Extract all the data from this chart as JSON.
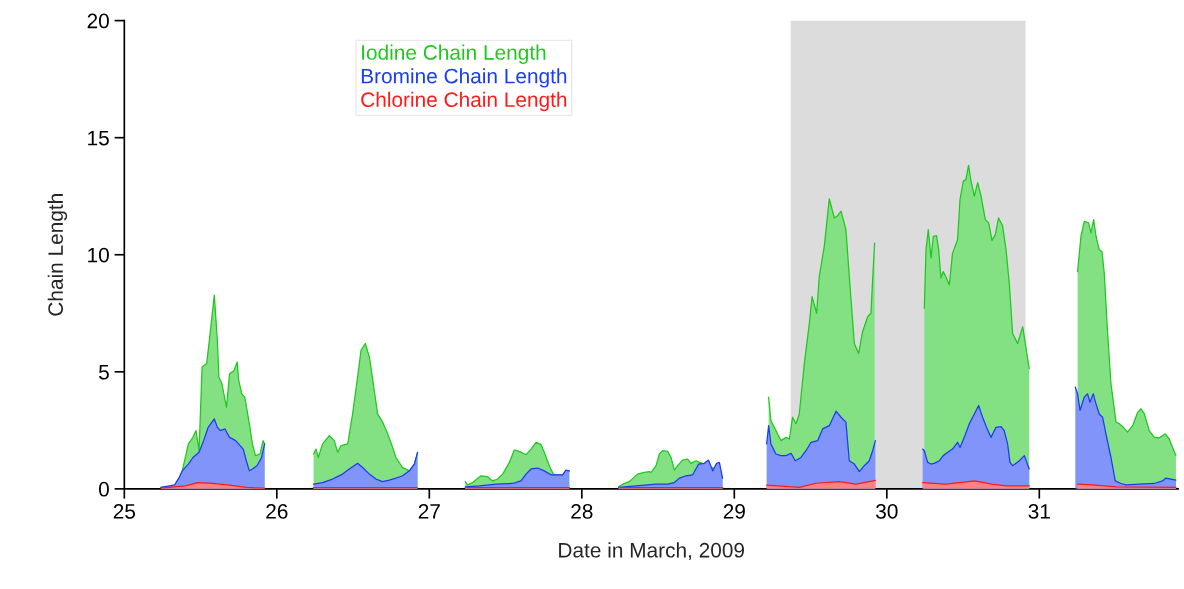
{
  "chart_data": {
    "type": "area",
    "xlabel": "Date in March, 2009",
    "ylabel": "Chain Length",
    "xlim": [
      25,
      31.91
    ],
    "ylim": [
      0,
      20
    ],
    "xticks": [
      25,
      26,
      27,
      28,
      29,
      30,
      31
    ],
    "yticks": [
      0,
      5,
      10,
      15,
      20
    ],
    "grid": false,
    "legend": "top left",
    "bands": [
      {
        "axis": "x",
        "from": 29.37,
        "to": 30.91,
        "color": "#dcdcdc"
      }
    ],
    "series": [
      {
        "name": "Iodine Chain Length",
        "color": "#1ec81e",
        "x": [
          25.24,
          25.34,
          25.38,
          25.42,
          25.45,
          25.47,
          25.49,
          25.51,
          25.54,
          25.56,
          25.59,
          25.61,
          25.62,
          25.64,
          25.67,
          25.69,
          25.72,
          25.74,
          25.75,
          25.77,
          25.79,
          25.82,
          25.84,
          25.86,
          25.89,
          25.91,
          25.92,
          26.0,
          26.241,
          26.257,
          26.272,
          26.3,
          26.344,
          26.377,
          26.399,
          26.421,
          26.465,
          26.497,
          26.53,
          26.552,
          26.58,
          26.607,
          26.639,
          26.661,
          26.694,
          26.727,
          26.76,
          26.781,
          26.825,
          26.869,
          26.902,
          26.923,
          27.0,
          27.236,
          27.251,
          27.284,
          27.339,
          27.382,
          27.415,
          27.448,
          27.481,
          27.525,
          27.557,
          27.59,
          27.634,
          27.667,
          27.7,
          27.732,
          27.754,
          27.787,
          27.813,
          27.841,
          27.874,
          27.896,
          27.918,
          28.0,
          28.241,
          28.268,
          28.311,
          28.366,
          28.41,
          28.443,
          28.454,
          28.487,
          28.508,
          28.53,
          28.563,
          28.585,
          28.607,
          28.628,
          28.661,
          28.694,
          28.716,
          28.749,
          28.77,
          28.792,
          28.858,
          28.923,
          29.0,
          29.225,
          29.24,
          29.273,
          29.306,
          29.339,
          29.361,
          29.382,
          29.405,
          29.426,
          29.459,
          29.492,
          29.51,
          29.54,
          29.557,
          29.59,
          29.623,
          29.656,
          29.677,
          29.7,
          29.732,
          29.754,
          29.787,
          29.815,
          29.841,
          29.874,
          29.896,
          29.907,
          29.92,
          30.0,
          30.246,
          30.257,
          30.272,
          30.29,
          30.305,
          30.326,
          30.34,
          30.355,
          30.37,
          30.387,
          30.41,
          30.431,
          30.464,
          30.48,
          30.502,
          30.519,
          30.536,
          30.552,
          30.574,
          30.596,
          30.618,
          30.646,
          30.668,
          30.69,
          30.711,
          30.733,
          30.759,
          30.782,
          30.803,
          30.825,
          30.858,
          30.891,
          30.934,
          31.0,
          31.251,
          31.273,
          31.295,
          31.323,
          31.339,
          31.356,
          31.372,
          31.393,
          31.411,
          31.426,
          31.448,
          31.47,
          31.503,
          31.525,
          31.551,
          31.579,
          31.612,
          31.645,
          31.667,
          31.689,
          31.721,
          31.754,
          31.787,
          31.826,
          31.852,
          31.874,
          31.896
        ],
        "values": [
          0.06,
          0.13,
          0.77,
          1.92,
          2.2,
          2.49,
          1.63,
          5.21,
          5.35,
          6.49,
          8.28,
          6.35,
          4.78,
          4.49,
          3.49,
          4.92,
          5.06,
          5.42,
          4.64,
          4.06,
          3.92,
          2.78,
          1.92,
          1.42,
          1.49,
          2.06,
          1.92,
          null,
          1.49,
          1.7,
          1.34,
          1.92,
          2.27,
          2.06,
          1.56,
          1.85,
          1.92,
          3.2,
          4.78,
          5.92,
          6.21,
          5.64,
          4.21,
          3.2,
          2.85,
          2.35,
          1.77,
          1.34,
          0.91,
          0.77,
          1.06,
          1.56,
          null,
          0.31,
          0.17,
          0.27,
          0.56,
          0.52,
          0.34,
          0.42,
          0.63,
          1.13,
          1.66,
          1.6,
          1.46,
          1.7,
          1.99,
          1.89,
          1.56,
          0.99,
          0.63,
          0.6,
          0.6,
          0.77,
          0.77,
          null,
          0.09,
          0.2,
          0.31,
          0.63,
          0.7,
          0.74,
          0.7,
          0.99,
          1.49,
          1.63,
          1.6,
          1.34,
          0.8,
          0.99,
          1.23,
          1.27,
          1.09,
          1.2,
          1.13,
          1.09,
          0.9,
          0.45,
          null,
          3.92,
          2.92,
          2.49,
          2.06,
          2.2,
          2.13,
          3.06,
          2.78,
          3.2,
          5.35,
          7.07,
          8.21,
          7.5,
          9.07,
          10.36,
          12.39,
          11.57,
          11.67,
          11.86,
          11.07,
          9.07,
          6.21,
          5.78,
          6.71,
          7.35,
          7.5,
          8.93,
          10.5,
          null,
          7.71,
          10.21,
          11.07,
          9.86,
          10.79,
          10.82,
          10.21,
          9.0,
          9.28,
          9.07,
          8.71,
          10.07,
          10.64,
          12.36,
          13.15,
          13.22,
          13.82,
          13.15,
          12.5,
          13.08,
          12.5,
          11.5,
          11.36,
          10.61,
          10.86,
          11.57,
          11.24,
          10.21,
          8.79,
          6.64,
          6.21,
          6.92,
          5.14,
          null,
          9.28,
          10.79,
          11.43,
          11.36,
          10.93,
          11.5,
          10.79,
          10.21,
          10.14,
          9.21,
          6.64,
          4.49,
          2.85,
          2.78,
          2.63,
          2.42,
          2.7,
          3.27,
          3.42,
          3.2,
          2.49,
          2.2,
          2.18,
          2.35,
          2.13,
          1.77,
          1.42
        ]
      },
      {
        "name": "Bromine Chain Length",
        "color": "#1a3cf5",
        "x": [
          25.24,
          25.33,
          25.36,
          25.38,
          25.42,
          25.45,
          25.49,
          25.52,
          25.55,
          25.59,
          25.61,
          25.63,
          25.66,
          25.69,
          25.73,
          25.78,
          25.8,
          25.82,
          25.84,
          25.87,
          25.9,
          25.92,
          26.0,
          26.241,
          26.3,
          26.366,
          26.431,
          26.475,
          26.53,
          26.563,
          26.607,
          26.65,
          26.694,
          26.738,
          26.781,
          26.825,
          26.869,
          26.902,
          26.923,
          27.0,
          27.236,
          27.328,
          27.437,
          27.546,
          27.601,
          27.634,
          27.667,
          27.71,
          27.754,
          27.798,
          27.841,
          27.874,
          27.896,
          27.918,
          28.0,
          28.241,
          28.355,
          28.487,
          28.563,
          28.607,
          28.64,
          28.683,
          28.727,
          28.766,
          28.803,
          28.831,
          28.858,
          28.884,
          28.902,
          28.923,
          29.0,
          29.212,
          29.225,
          29.24,
          29.273,
          29.306,
          29.339,
          29.372,
          29.4,
          29.437,
          29.47,
          29.503,
          29.546,
          29.579,
          29.623,
          29.667,
          29.7,
          29.732,
          29.754,
          29.787,
          29.82,
          29.852,
          29.885,
          29.907,
          29.925,
          30.0,
          30.235,
          30.246,
          30.268,
          30.29,
          30.311,
          30.344,
          30.37,
          30.399,
          30.431,
          30.464,
          30.48,
          30.508,
          30.541,
          30.574,
          30.602,
          30.628,
          30.654,
          30.683,
          30.716,
          30.749,
          30.77,
          30.792,
          30.808,
          30.825,
          30.869,
          30.902,
          30.934,
          31.0,
          31.236,
          31.251,
          31.267,
          31.295,
          31.317,
          31.332,
          31.354,
          31.372,
          31.393,
          31.415,
          31.437,
          31.47,
          31.498,
          31.536,
          31.568,
          31.656,
          31.754,
          31.808,
          31.83,
          31.863,
          31.896
        ],
        "values": [
          0.06,
          0.17,
          0.49,
          0.77,
          1.06,
          1.34,
          1.56,
          2.06,
          2.63,
          2.99,
          2.63,
          2.49,
          2.56,
          2.2,
          2.06,
          1.7,
          1.2,
          0.77,
          0.85,
          0.99,
          1.34,
          1.92,
          null,
          0.2,
          0.27,
          0.42,
          0.63,
          0.85,
          1.09,
          0.91,
          0.63,
          0.42,
          0.31,
          0.37,
          0.46,
          0.56,
          0.77,
          1.06,
          1.56,
          null,
          0.09,
          0.13,
          0.2,
          0.23,
          0.34,
          0.63,
          0.85,
          0.89,
          0.77,
          0.6,
          0.6,
          0.6,
          0.8,
          0.77,
          null,
          0.06,
          0.13,
          0.2,
          0.2,
          0.27,
          0.46,
          0.56,
          0.6,
          1.06,
          1.09,
          1.23,
          0.77,
          1.09,
          1.13,
          0.46,
          null,
          1.92,
          2.7,
          1.92,
          1.49,
          1.42,
          1.42,
          1.52,
          1.2,
          1.34,
          1.63,
          1.99,
          2.06,
          2.56,
          2.7,
          3.32,
          3.06,
          2.85,
          1.2,
          1.06,
          0.74,
          0.99,
          1.2,
          1.63,
          2.06,
          null,
          1.7,
          1.63,
          1.13,
          1.06,
          1.09,
          1.2,
          1.42,
          1.56,
          1.7,
          1.99,
          1.77,
          2.2,
          2.78,
          3.2,
          3.56,
          3.06,
          2.63,
          2.2,
          2.63,
          2.66,
          2.49,
          1.92,
          1.13,
          0.99,
          1.2,
          1.42,
          0.85,
          null,
          4.35,
          4.06,
          3.35,
          3.92,
          4.06,
          3.7,
          4.06,
          3.63,
          3.2,
          3.06,
          2.35,
          1.34,
          0.34,
          0.23,
          0.17,
          0.2,
          0.23,
          0.34,
          0.46,
          0.42,
          0.37
        ]
      },
      {
        "name": "Chlorine Chain Length",
        "color": "#ff1a1a",
        "x": [
          25.24,
          25.4,
          25.48,
          25.58,
          25.69,
          25.8,
          25.92,
          26.0,
          26.24,
          26.92,
          27.0,
          27.236,
          27.918,
          28.0,
          28.241,
          28.923,
          29.0,
          29.212,
          29.426,
          29.536,
          29.69,
          29.798,
          29.925,
          30.0,
          30.235,
          30.387,
          30.577,
          30.69,
          30.782,
          30.934,
          31.0,
          31.251,
          31.35,
          31.503,
          31.896
        ],
        "values": [
          0.03,
          0.13,
          0.27,
          0.23,
          0.16,
          0.06,
          0.03,
          null,
          0.05,
          0.05,
          null,
          0.05,
          0.05,
          null,
          0.05,
          0.05,
          null,
          0.16,
          0.06,
          0.24,
          0.31,
          0.2,
          0.36,
          null,
          0.27,
          0.2,
          0.34,
          0.2,
          0.13,
          0.13,
          null,
          0.2,
          0.17,
          0.09,
          0.06
        ]
      }
    ]
  }
}
